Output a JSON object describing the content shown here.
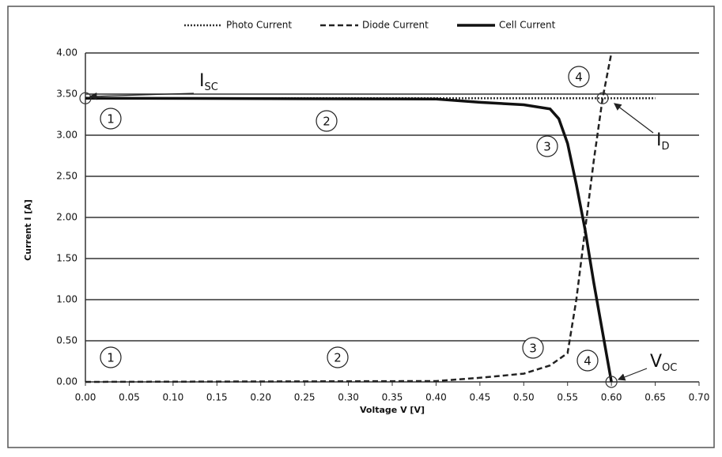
{
  "chart_data": {
    "type": "line",
    "y_label": "Current I [A]",
    "x_label": "Voltage V [V]",
    "xlim": [
      0,
      0.7
    ],
    "ylim": [
      0,
      4
    ],
    "xticks": [
      {
        "value": 0,
        "label": "0.00"
      },
      {
        "value": 0.05,
        "label": "0.05"
      },
      {
        "value": 0.1,
        "label": "0.10"
      },
      {
        "value": 0.15,
        "label": "0.15"
      },
      {
        "value": 0.2,
        "label": "0.20"
      },
      {
        "value": 0.25,
        "label": "0.25"
      },
      {
        "value": 0.3,
        "label": "0.30"
      },
      {
        "value": 0.35,
        "label": "0.35"
      },
      {
        "value": 0.4,
        "label": "0.40"
      },
      {
        "value": 0.45,
        "label": "0.45"
      },
      {
        "value": 0.5,
        "label": "0.50"
      },
      {
        "value": 0.55,
        "label": "0.55"
      },
      {
        "value": 0.6,
        "label": "0.60"
      },
      {
        "value": 0.65,
        "label": "0.65"
      },
      {
        "value": 0.7,
        "label": "0.70"
      }
    ],
    "yticks": [
      {
        "value": 0,
        "label": "0.00"
      },
      {
        "value": 0.5,
        "label": "0.50"
      },
      {
        "value": 1,
        "label": "1.00"
      },
      {
        "value": 1.5,
        "label": "1.50"
      },
      {
        "value": 2,
        "label": "2.00"
      },
      {
        "value": 2.5,
        "label": "2.50"
      },
      {
        "value": 3,
        "label": "3.00"
      },
      {
        "value": 3.5,
        "label": "3.50"
      },
      {
        "value": 4,
        "label": "4.00"
      }
    ],
    "grid": true,
    "legend": "top",
    "series": [
      {
        "name": "Photo Current",
        "color": "#333333",
        "style": "dotted",
        "x": [
          0,
          0.65
        ],
        "values": [
          3.45,
          3.45
        ]
      },
      {
        "name": "Diode Current",
        "color": "#222222",
        "style": "dashed",
        "x": [
          0,
          0.4,
          0.45,
          0.5,
          0.53,
          0.55,
          0.56,
          0.57,
          0.58,
          0.59,
          0.6
        ],
        "values": [
          0,
          0.01,
          0.05,
          0.1,
          0.2,
          0.35,
          1.0,
          1.85,
          2.7,
          3.45,
          4.0
        ]
      },
      {
        "name": "Cell Current",
        "color": "#111111",
        "style": "solid",
        "x": [
          0,
          0.4,
          0.45,
          0.5,
          0.53,
          0.54,
          0.55,
          0.56,
          0.57,
          0.58,
          0.59,
          0.6
        ],
        "values": [
          3.45,
          3.44,
          3.4,
          3.37,
          3.32,
          3.2,
          2.9,
          2.4,
          1.85,
          1.2,
          0.6,
          0
        ]
      }
    ],
    "annotations": [
      {
        "text": "1"
      },
      {
        "text": "2"
      },
      {
        "text": "3"
      },
      {
        "text": "4"
      },
      {
        "text": "1"
      },
      {
        "text": "2"
      },
      {
        "text": "3"
      },
      {
        "text": "4"
      },
      {
        "text": "I",
        "sub": "SC"
      },
      {
        "text": "I",
        "sub": "D"
      },
      {
        "text": "V",
        "sub": "OC"
      }
    ]
  }
}
